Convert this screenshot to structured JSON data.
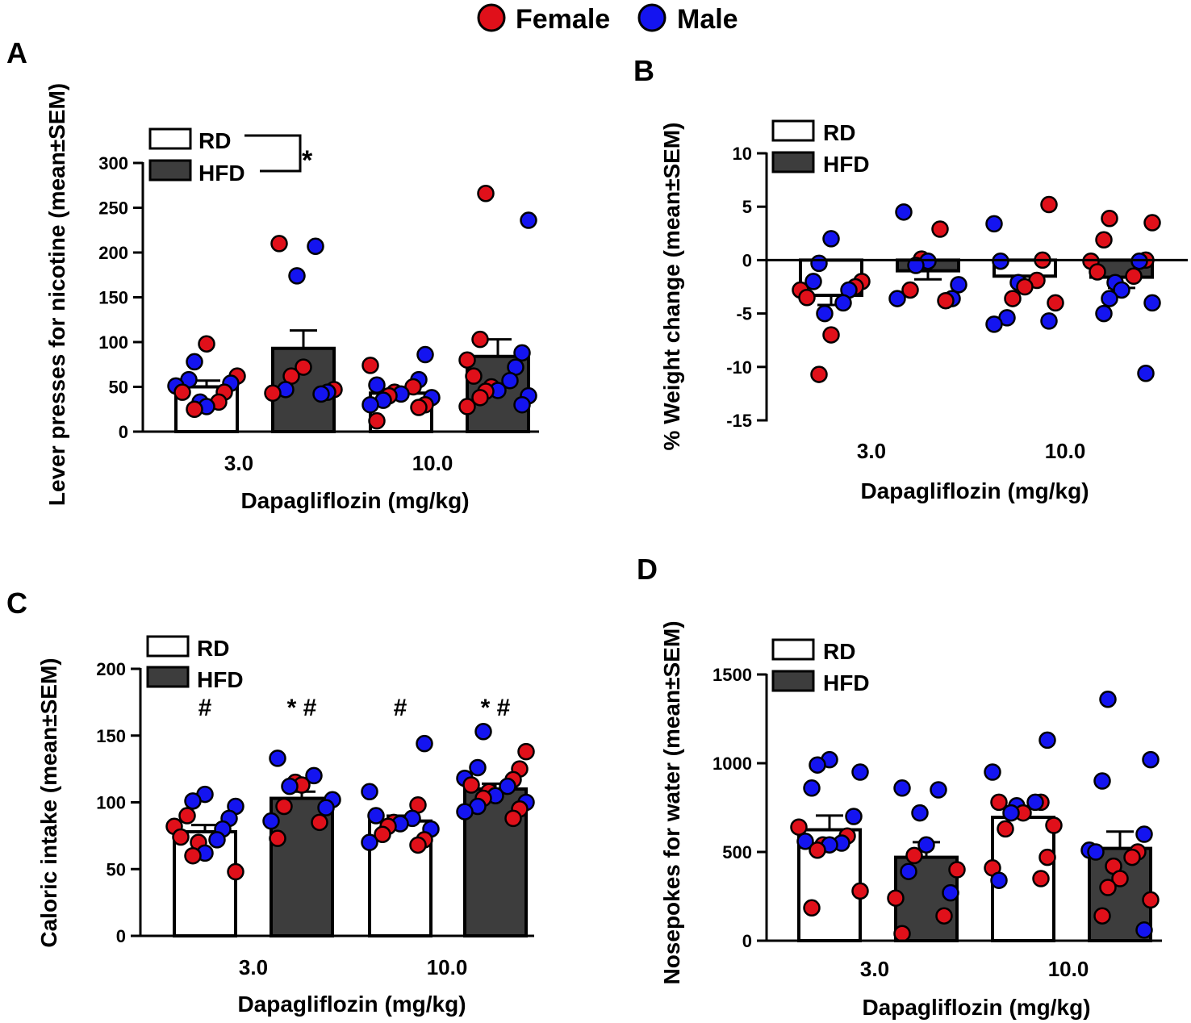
{
  "legend": {
    "female_label": "Female",
    "male_label": "Male",
    "female_color": "#e0101a",
    "male_color": "#1414f0",
    "rd_label": "RD",
    "hfd_label": "HFD",
    "rd_fill": "#ffffff",
    "hfd_fill": "#3d3d3d"
  },
  "chart_data": [
    {
      "panel": "A",
      "type": "bar",
      "xlabel": "Dapagliflozin (mg/kg)",
      "ylabel": "Lever presses for nicotine (mean±SEM)",
      "ylim": [
        0,
        300
      ],
      "yticks": [
        0,
        50,
        100,
        150,
        200,
        250,
        300
      ],
      "categories": [
        "3.0",
        "10.0"
      ],
      "legend_annotation": "*",
      "bars": [
        {
          "dose": "3.0",
          "diet": "RD",
          "mean": 50,
          "sem": 7,
          "annotation": "",
          "female": [
            98,
            62,
            44,
            25,
            33,
            44
          ],
          "male": [
            78,
            58,
            54,
            28,
            33,
            51
          ]
        },
        {
          "dose": "3.0",
          "diet": "HFD",
          "mean": 93,
          "sem": 20,
          "annotation": "",
          "female": [
            210,
            72,
            62,
            43,
            47
          ],
          "male": [
            207,
            174,
            44,
            42,
            47
          ]
        },
        {
          "dose": "10.0",
          "diet": "RD",
          "mean": 43,
          "sem": 5,
          "annotation": "",
          "female": [
            74,
            50,
            44,
            40,
            30,
            12,
            27
          ],
          "male": [
            86,
            58,
            52,
            35,
            38,
            30,
            42
          ]
        },
        {
          "dose": "10.0",
          "diet": "HFD",
          "mean": 84,
          "sem": 19,
          "annotation": "",
          "female": [
            266,
            103,
            80,
            62,
            50,
            45,
            28,
            38
          ],
          "male": [
            236,
            88,
            72,
            57,
            40,
            30,
            46
          ]
        }
      ]
    },
    {
      "panel": "B",
      "type": "bar",
      "xlabel": "Dapagliflozin (mg/kg)",
      "ylabel": "% Weight change (mean±SEM)",
      "ylim": [
        -15,
        10
      ],
      "yticks": [
        -15,
        -10,
        -5,
        0,
        5,
        10
      ],
      "categories": [
        "3.0",
        "10.0"
      ],
      "legend_annotation": "",
      "bars": [
        {
          "dose": "3.0",
          "diet": "RD",
          "mean": -3.3,
          "sem": 0.9,
          "annotation": "",
          "female": [
            -2.8,
            -2.5,
            -2.0,
            -3.5,
            -7.0,
            -10.7
          ],
          "male": [
            2.0,
            -0.3,
            -2.0,
            -2.8,
            -4.0,
            -5.0
          ]
        },
        {
          "dose": "3.0",
          "diet": "HFD",
          "mean": -1.0,
          "sem": 0.8,
          "annotation": "",
          "female": [
            2.9,
            0.1,
            -2.8,
            -3.8
          ],
          "male": [
            4.5,
            -0.1,
            -0.5,
            -2.3,
            -3.6,
            -3.6
          ]
        },
        {
          "dose": "10.0",
          "diet": "RD",
          "mean": -1.5,
          "sem": 0.8,
          "annotation": "",
          "female": [
            5.2,
            0.0,
            -1.9,
            -2.5,
            -3.6,
            -4.0
          ],
          "male": [
            3.4,
            -0.1,
            -2.1,
            -5.4,
            -5.7,
            -6.0
          ]
        },
        {
          "dose": "10.0",
          "diet": "HFD",
          "mean": -1.6,
          "sem": 1.0,
          "annotation": "",
          "female": [
            3.9,
            3.5,
            1.9,
            0.0,
            -0.1,
            -1.1,
            -1.5
          ],
          "male": [
            -0.1,
            -2.1,
            -2.8,
            -3.6,
            -4.0,
            -5.0,
            -10.6
          ]
        }
      ]
    },
    {
      "panel": "C",
      "type": "bar",
      "xlabel": "Dapagliflozin (mg/kg)",
      "ylabel": "Caloric intake (mean±SEM)",
      "ylim": [
        0,
        200
      ],
      "yticks": [
        0,
        50,
        100,
        150,
        200
      ],
      "categories": [
        "3.0",
        "10.0"
      ],
      "legend_annotation": "",
      "bars": [
        {
          "dose": "3.0",
          "diet": "RD",
          "mean": 78,
          "sem": 5,
          "annotation": "#",
          "female": [
            90,
            82,
            74,
            70,
            60,
            48
          ],
          "male": [
            101,
            106,
            97,
            88,
            80,
            72,
            62
          ]
        },
        {
          "dose": "3.0",
          "diet": "HFD",
          "mean": 103,
          "sem": 5,
          "annotation": "*#",
          "female": [
            115,
            113,
            97,
            85,
            73
          ],
          "male": [
            133,
            120,
            112,
            102,
            96,
            86
          ]
        },
        {
          "dose": "10.0",
          "diet": "RD",
          "mean": 86,
          "sem": 4,
          "annotation": "#",
          "female": [
            98,
            85,
            82,
            76,
            72,
            68
          ],
          "male": [
            144,
            108,
            90,
            88,
            84,
            80,
            70
          ]
        },
        {
          "dose": "10.0",
          "diet": "HFD",
          "mean": 110,
          "sem": 4,
          "annotation": "*#",
          "female": [
            138,
            125,
            117,
            113,
            108,
            103,
            95,
            88
          ],
          "male": [
            153,
            126,
            118,
            112,
            105,
            100,
            97,
            93
          ]
        }
      ]
    },
    {
      "panel": "D",
      "type": "bar",
      "xlabel": "Dapagliflozin (mg/kg)",
      "ylabel": "Nosepokes for water (mean±SEM)",
      "ylim": [
        0,
        1500
      ],
      "yticks": [
        0,
        500,
        1000,
        1500
      ],
      "categories": [
        "3.0",
        "10.0"
      ],
      "legend_annotation": "",
      "bars": [
        {
          "dose": "3.0",
          "diet": "RD",
          "mean": 625,
          "sem": 80,
          "annotation": "",
          "female": [
            640,
            590,
            540,
            510,
            280,
            185
          ],
          "male": [
            1020,
            990,
            950,
            860,
            700,
            560,
            540,
            550
          ]
        },
        {
          "dose": "3.0",
          "diet": "HFD",
          "mean": 470,
          "sem": 85,
          "annotation": "",
          "female": [
            480,
            400,
            240,
            140,
            40
          ],
          "male": [
            850,
            860,
            720,
            540,
            390,
            270
          ]
        },
        {
          "dose": "10.0",
          "diet": "RD",
          "mean": 695,
          "sem": 50,
          "annotation": "",
          "female": [
            780,
            780,
            720,
            650,
            630,
            470,
            410,
            350
          ],
          "male": [
            1130,
            950,
            780,
            760,
            720,
            340
          ]
        },
        {
          "dose": "10.0",
          "diet": "HFD",
          "mean": 520,
          "sem": 95,
          "annotation": "",
          "female": [
            500,
            470,
            420,
            350,
            300,
            230,
            140
          ],
          "male": [
            1360,
            1020,
            900,
            600,
            510,
            500,
            60
          ]
        }
      ]
    }
  ]
}
